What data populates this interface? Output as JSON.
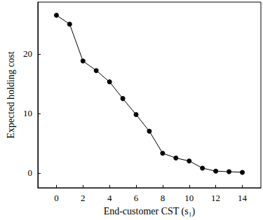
{
  "chart_data": {
    "type": "line",
    "xlabel": "End-customer CST (s₁)",
    "ylabel": "Expected holding cost",
    "x": [
      0,
      1,
      2,
      3,
      4,
      5,
      6,
      7,
      8,
      9,
      10,
      11,
      12,
      13,
      14
    ],
    "values": [
      26.5,
      25.0,
      18.8,
      17.2,
      15.3,
      12.5,
      9.8,
      7.0,
      3.3,
      2.5,
      2.0,
      0.8,
      0.3,
      0.2,
      0.1
    ],
    "color": "#000000",
    "marker": "circle",
    "xlim": [
      -1.4,
      15.4
    ],
    "ylim": [
      -2.5,
      28.7
    ],
    "xticks": [
      0,
      2,
      4,
      6,
      8,
      10,
      12,
      14
    ],
    "yticks": [
      0,
      10,
      20
    ],
    "grid": false
  }
}
